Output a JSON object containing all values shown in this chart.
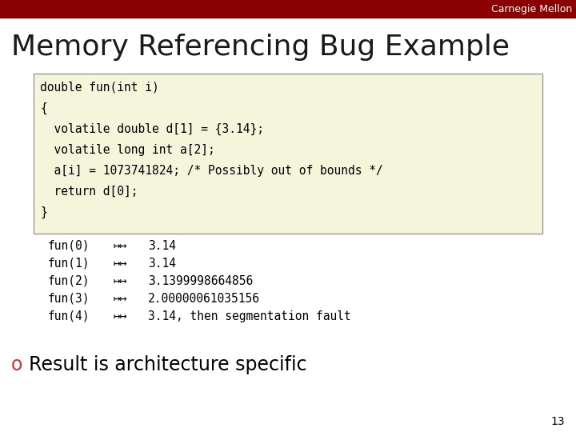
{
  "title": "Memory Referencing Bug Example",
  "title_color": "#1A1A1A",
  "bg_color": "#FFFFFF",
  "header_bar_color": "#8B0000",
  "carnegie_mellon_text": "Carnegie Mellon",
  "code_box_bg": "#F5F5DC",
  "code_box_border": "#999999",
  "code_lines": [
    "double fun(int i)",
    "{",
    "  volatile double d[1] = {3.14};",
    "  volatile long int a[2];",
    "  a[i] = 1073741824; /* Possibly out of bounds */",
    "  return d[0];",
    "}"
  ],
  "table_rows": [
    [
      "fun(0)",
      "↦↦",
      "3.14"
    ],
    [
      "fun(1)",
      "↦↦",
      "3.14"
    ],
    [
      "fun(2)",
      "↦↦",
      "3.1399998664856"
    ],
    [
      "fun(3)",
      "↦↦",
      "2.00000061035156"
    ],
    [
      "fun(4)",
      "↦↦",
      "3.14, then segmentation fault"
    ]
  ],
  "bullet_char": "o",
  "bullet_char_color": "#CC3333",
  "bullet_text": "Result is architecture specific",
  "bullet_text_color": "#000000",
  "page_number": "13",
  "font_size_header": 9,
  "font_size_title": 26,
  "font_size_code": 10.5,
  "font_size_table": 10.5,
  "font_size_bullet": 17,
  "font_size_page": 10
}
